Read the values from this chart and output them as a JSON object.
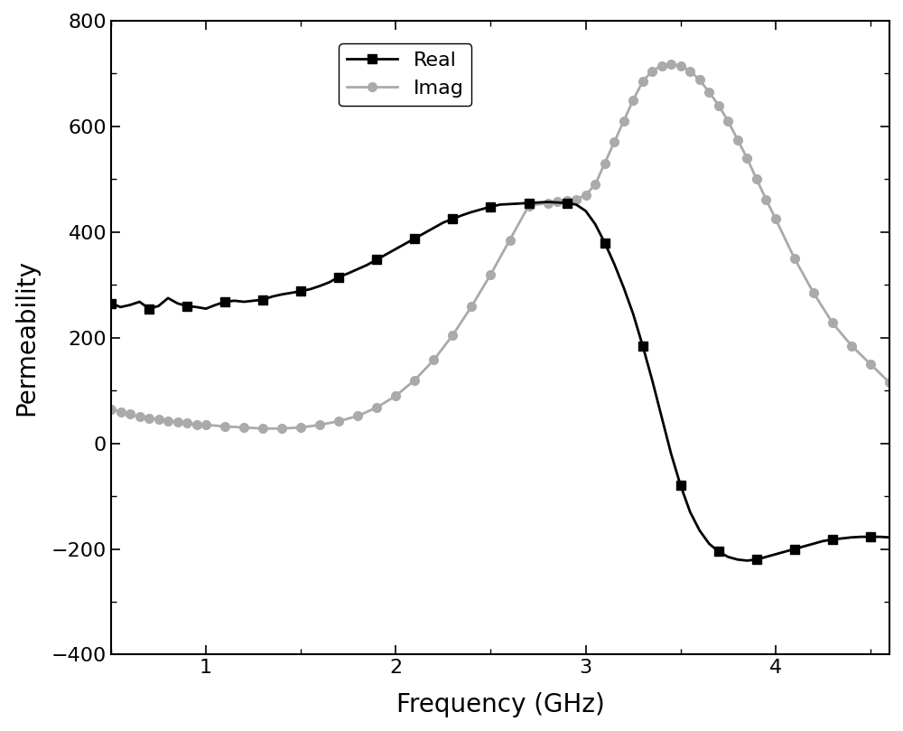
{
  "title": "",
  "xlabel": "Frequency (GHz)",
  "ylabel": "Permeability",
  "xlim": [
    0.5,
    4.6
  ],
  "ylim": [
    -400,
    800
  ],
  "yticks": [
    -400,
    -200,
    0,
    200,
    400,
    600,
    800
  ],
  "xticks": [
    1,
    2,
    3,
    4
  ],
  "background_color": "#ffffff",
  "real_color": "#000000",
  "imag_color": "#aaaaaa",
  "real_label": "Real",
  "imag_label": "Imag",
  "real_linewidth": 2.0,
  "imag_linewidth": 2.0,
  "real_marker": "s",
  "imag_marker": "o",
  "real_markersize": 7,
  "imag_markersize": 7,
  "legend_fontsize": 16,
  "axis_label_fontsize": 20,
  "tick_fontsize": 16,
  "real_x": [
    0.5,
    0.55,
    0.6,
    0.65,
    0.7,
    0.75,
    0.8,
    0.85,
    0.9,
    0.95,
    1.0,
    1.05,
    1.1,
    1.15,
    1.2,
    1.25,
    1.3,
    1.35,
    1.4,
    1.45,
    1.5,
    1.55,
    1.6,
    1.65,
    1.7,
    1.75,
    1.8,
    1.85,
    1.9,
    1.95,
    2.0,
    2.05,
    2.1,
    2.15,
    2.2,
    2.25,
    2.3,
    2.35,
    2.4,
    2.45,
    2.5,
    2.55,
    2.6,
    2.65,
    2.7,
    2.75,
    2.8,
    2.85,
    2.9,
    2.95,
    3.0,
    3.05,
    3.1,
    3.15,
    3.2,
    3.25,
    3.3,
    3.35,
    3.4,
    3.45,
    3.5,
    3.55,
    3.6,
    3.65,
    3.7,
    3.75,
    3.8,
    3.85,
    3.9,
    3.95,
    4.0,
    4.05,
    4.1,
    4.15,
    4.2,
    4.25,
    4.3,
    4.35,
    4.4,
    4.45,
    4.5,
    4.55,
    4.6
  ],
  "real_y": [
    265,
    258,
    262,
    268,
    255,
    260,
    275,
    265,
    260,
    258,
    255,
    262,
    268,
    270,
    268,
    270,
    272,
    278,
    282,
    285,
    288,
    292,
    298,
    305,
    315,
    322,
    330,
    338,
    348,
    358,
    368,
    378,
    388,
    398,
    408,
    418,
    425,
    432,
    438,
    443,
    448,
    452,
    453,
    454,
    455,
    456,
    457,
    456,
    455,
    452,
    440,
    415,
    380,
    340,
    295,
    245,
    185,
    120,
    50,
    -20,
    -80,
    -130,
    -165,
    -190,
    -205,
    -215,
    -220,
    -222,
    -220,
    -215,
    -210,
    -205,
    -200,
    -195,
    -190,
    -185,
    -182,
    -180,
    -178,
    -177,
    -177,
    -177,
    -178
  ],
  "imag_x": [
    0.5,
    0.55,
    0.6,
    0.65,
    0.7,
    0.75,
    0.8,
    0.85,
    0.9,
    0.95,
    1.0,
    1.1,
    1.2,
    1.3,
    1.4,
    1.5,
    1.6,
    1.7,
    1.8,
    1.9,
    2.0,
    2.1,
    2.2,
    2.3,
    2.4,
    2.5,
    2.6,
    2.7,
    2.8,
    2.85,
    2.9,
    2.95,
    3.0,
    3.05,
    3.1,
    3.15,
    3.2,
    3.25,
    3.3,
    3.35,
    3.4,
    3.45,
    3.5,
    3.55,
    3.6,
    3.65,
    3.7,
    3.75,
    3.8,
    3.85,
    3.9,
    3.95,
    4.0,
    4.1,
    4.2,
    4.3,
    4.4,
    4.5,
    4.6
  ],
  "imag_y": [
    65,
    60,
    55,
    50,
    48,
    45,
    42,
    40,
    38,
    36,
    35,
    32,
    30,
    28,
    28,
    30,
    35,
    42,
    52,
    68,
    90,
    120,
    158,
    205,
    260,
    320,
    385,
    450,
    455,
    458,
    460,
    462,
    470,
    490,
    530,
    570,
    610,
    650,
    685,
    705,
    715,
    718,
    715,
    705,
    688,
    665,
    640,
    610,
    575,
    540,
    500,
    462,
    425,
    350,
    285,
    228,
    185,
    150,
    115
  ]
}
